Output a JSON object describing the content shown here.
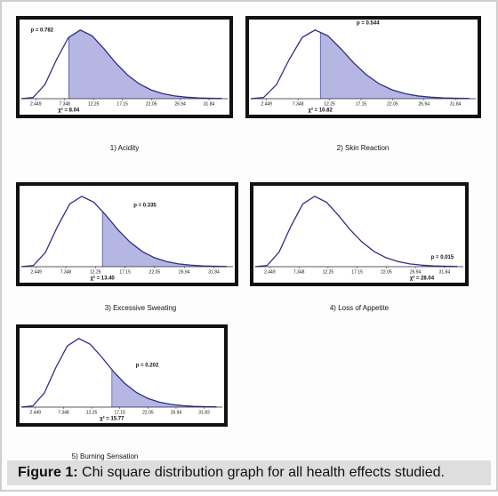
{
  "chart_data": [
    {
      "type": "line",
      "title": "1) Acidity",
      "x": [
        0,
        2,
        4,
        6,
        8,
        10,
        12,
        14,
        16,
        18,
        20,
        22,
        24,
        26,
        28,
        30,
        32,
        34
      ],
      "values": [
        0,
        0.0015,
        0.018,
        0.0504,
        0.0782,
        0.0877,
        0.0803,
        0.0639,
        0.0458,
        0.0304,
        0.0189,
        0.0112,
        0.0064,
        0.0035,
        0.0019,
        0.001,
        0.0005,
        0.0002
      ],
      "xlim": [
        0,
        35
      ],
      "ylim": [
        0,
        0.092
      ],
      "xticks": [
        2.449,
        7.348,
        12.25,
        17.15,
        22.05,
        26.94,
        31.84
      ],
      "statistic": {
        "value": 8.04,
        "label": "χ² = 8.04"
      },
      "p": {
        "value": 0.782,
        "label": "p = 0.782"
      },
      "color": "#2e2e8a",
      "fill": "#b6b6e2"
    },
    {
      "type": "line",
      "title": "2) Skin Reaction",
      "x": [
        0,
        2,
        4,
        6,
        8,
        10,
        12,
        14,
        16,
        18,
        20,
        22,
        24,
        26,
        28,
        30,
        32,
        34
      ],
      "values": [
        0,
        0.0015,
        0.018,
        0.0504,
        0.0782,
        0.0877,
        0.0803,
        0.0639,
        0.0458,
        0.0304,
        0.0189,
        0.0112,
        0.0064,
        0.0035,
        0.0019,
        0.001,
        0.0005,
        0.0002
      ],
      "xlim": [
        0,
        35
      ],
      "ylim": [
        0,
        0.092
      ],
      "xticks": [
        2.449,
        7.348,
        12.25,
        17.15,
        22.05,
        26.94,
        31.84
      ],
      "statistic": {
        "value": 10.82,
        "label": "χ² = 10.82"
      },
      "p": {
        "value": 0.544,
        "label": "p = 0.544"
      },
      "color": "#2e2e8a",
      "fill": "#b6b6e2"
    },
    {
      "type": "line",
      "title": "3) Excessive Sweating",
      "x": [
        0,
        2,
        4,
        6,
        8,
        10,
        12,
        14,
        16,
        18,
        20,
        22,
        24,
        26,
        28,
        30,
        32,
        34
      ],
      "values": [
        0,
        0.0015,
        0.018,
        0.0504,
        0.0782,
        0.0877,
        0.0803,
        0.0639,
        0.0458,
        0.0304,
        0.0189,
        0.0112,
        0.0064,
        0.0035,
        0.0019,
        0.001,
        0.0005,
        0.0002
      ],
      "xlim": [
        0,
        35
      ],
      "ylim": [
        0,
        0.092
      ],
      "xticks": [
        2.449,
        7.348,
        12.25,
        17.15,
        22.05,
        26.94,
        31.84
      ],
      "statistic": {
        "value": 13.4,
        "label": "χ² = 13.40"
      },
      "p": {
        "value": 0.335,
        "label": "p = 0.335"
      },
      "color": "#2e2e8a",
      "fill": "#b6b6e2"
    },
    {
      "type": "line",
      "title": "4) Loss of Appetite",
      "x": [
        0,
        2,
        4,
        6,
        8,
        10,
        12,
        14,
        16,
        18,
        20,
        22,
        24,
        26,
        28,
        30,
        32,
        34
      ],
      "values": [
        0,
        0.0015,
        0.018,
        0.0504,
        0.0782,
        0.0877,
        0.0803,
        0.0639,
        0.0458,
        0.0304,
        0.0189,
        0.0112,
        0.0064,
        0.0035,
        0.0019,
        0.001,
        0.0005,
        0.0002
      ],
      "xlim": [
        0,
        35
      ],
      "ylim": [
        0,
        0.092
      ],
      "xticks": [
        2.449,
        7.348,
        12.25,
        17.15,
        22.05,
        26.94,
        31.84
      ],
      "statistic": {
        "value": 28.04,
        "label": "χ² = 28.04"
      },
      "p": {
        "value": 0.015,
        "label": "p = 0.015"
      },
      "color": "#2e2e8a",
      "fill": "#b6b6e2"
    },
    {
      "type": "line",
      "title": "5) Burning Sensation",
      "x": [
        0,
        2,
        4,
        6,
        8,
        10,
        12,
        14,
        16,
        18,
        20,
        22,
        24,
        26,
        28,
        30,
        32,
        34
      ],
      "values": [
        0,
        0.0015,
        0.018,
        0.0504,
        0.0782,
        0.0877,
        0.0803,
        0.0639,
        0.0458,
        0.0304,
        0.0189,
        0.0112,
        0.0064,
        0.0035,
        0.0019,
        0.001,
        0.0005,
        0.0002
      ],
      "xlim": [
        0,
        35
      ],
      "ylim": [
        0,
        0.092
      ],
      "xticks": [
        2.449,
        7.348,
        12.25,
        17.15,
        22.05,
        26.94,
        31.83
      ],
      "statistic": {
        "value": 15.77,
        "label": "χ² = 15.77"
      },
      "p": {
        "value": 0.202,
        "label": "p = 0.202"
      },
      "color": "#2e2e8a",
      "fill": "#b6b6e2"
    }
  ],
  "figure": {
    "label": "Figure 1:",
    "text": " Chi square distribution graph for all health effects studied."
  }
}
